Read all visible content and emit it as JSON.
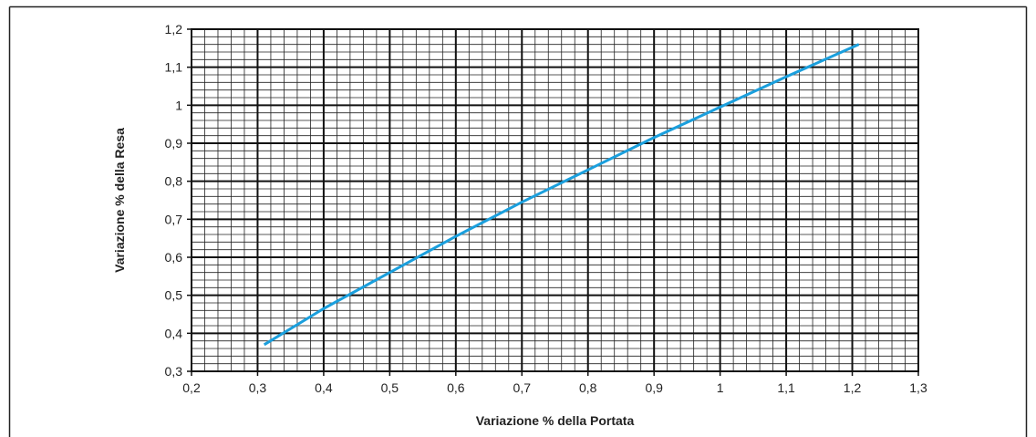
{
  "chart_data": {
    "type": "line",
    "title": "",
    "xlabel": "Variazione % della Portata",
    "ylabel": "Variazione % della Resa",
    "xlim": [
      0.2,
      1.3
    ],
    "ylim": [
      0.3,
      1.2
    ],
    "x_ticks": [
      "0,2",
      "0,3",
      "0,4",
      "0,5",
      "0,6",
      "0,7",
      "0,8",
      "0,9",
      "1",
      "1,1",
      "1,2",
      "1,3"
    ],
    "y_ticks": [
      "0,3",
      "0,4",
      "0,5",
      "0,6",
      "0,7",
      "0,8",
      "0,9",
      "1",
      "1,1",
      "1,2"
    ],
    "grid": true,
    "minor_grid_divisions": {
      "x": 5,
      "y": 5
    },
    "series": [
      {
        "color": "#1a9fdd",
        "x": [
          0.31,
          0.4,
          0.5,
          0.6,
          0.7,
          0.8,
          0.9,
          1.0,
          1.1,
          1.21
        ],
        "y": [
          0.37,
          0.465,
          0.56,
          0.655,
          0.745,
          0.83,
          0.915,
          0.995,
          1.075,
          1.16
        ]
      }
    ]
  }
}
